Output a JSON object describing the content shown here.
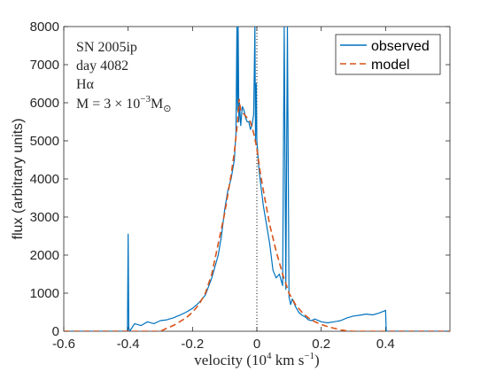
{
  "colors": {
    "observed": "#0072bd",
    "model": "#d95319",
    "axis": "#262626",
    "zero_line": "#000000"
  },
  "chart_data": {
    "type": "line",
    "xlabel_prefix": "velocity (10",
    "xlabel_exp": "4",
    "xlabel_mid": " km s",
    "xlabel_exp2": "−1",
    "xlabel_suffix": ")",
    "ylabel": "flux (arbitrary units)",
    "xlim": [
      -0.6,
      0.6
    ],
    "ylim": [
      0,
      8000
    ],
    "xticks": [
      -0.6,
      -0.4,
      -0.2,
      0,
      0.2,
      0.4
    ],
    "xtick_labels": [
      "-0.6",
      "-0.4",
      "-0.2",
      "0",
      "0.2",
      "0.4"
    ],
    "yticks": [
      0,
      1000,
      2000,
      3000,
      4000,
      5000,
      6000,
      7000,
      8000
    ],
    "ytick_labels": [
      "0",
      "1000",
      "2000",
      "3000",
      "4000",
      "5000",
      "6000",
      "7000",
      "8000"
    ],
    "legend_position": "top-right",
    "annotations": {
      "line1": "SN 2005ip",
      "line2": "day 4082",
      "line3": "Hα",
      "line4_prefix": "M = 3 × 10",
      "line4_exp": "−3",
      "line4_suffix": "M",
      "line4_sub": "⊙"
    },
    "zero_velocity_line": 0,
    "series": [
      {
        "name": "observed",
        "style": "solid",
        "x": [
          -0.6,
          -0.41,
          -0.402,
          -0.4,
          -0.398,
          -0.395,
          -0.38,
          -0.36,
          -0.34,
          -0.32,
          -0.3,
          -0.28,
          -0.26,
          -0.24,
          -0.22,
          -0.2,
          -0.18,
          -0.16,
          -0.14,
          -0.12,
          -0.11,
          -0.1,
          -0.09,
          -0.08,
          -0.07,
          -0.065,
          -0.062,
          -0.06,
          -0.058,
          -0.056,
          -0.054,
          -0.05,
          -0.045,
          -0.04,
          -0.035,
          -0.03,
          -0.025,
          -0.02,
          -0.015,
          -0.01,
          -0.006,
          -0.004,
          -0.002,
          0,
          0.002,
          0.005,
          0.01,
          0.02,
          0.03,
          0.04,
          0.05,
          0.06,
          0.07,
          0.08,
          0.085,
          0.09,
          0.095,
          0.1,
          0.105,
          0.11,
          0.12,
          0.13,
          0.14,
          0.15,
          0.16,
          0.17,
          0.18,
          0.2,
          0.22,
          0.24,
          0.26,
          0.28,
          0.3,
          0.32,
          0.34,
          0.36,
          0.38,
          0.4,
          0.402,
          0.41,
          0.6
        ],
        "y": [
          0,
          0,
          0,
          2550,
          100,
          0,
          200,
          150,
          250,
          200,
          280,
          300,
          350,
          420,
          500,
          600,
          750,
          950,
          1400,
          2000,
          2500,
          3200,
          3700,
          4000,
          4500,
          5200,
          8000,
          5800,
          8000,
          5500,
          6000,
          5400,
          5900,
          5800,
          5600,
          5500,
          5500,
          5300,
          5400,
          5700,
          8000,
          5000,
          6500,
          5000,
          4800,
          4400,
          4000,
          3300,
          2800,
          2300,
          1600,
          1400,
          1500,
          1200,
          8000,
          1100,
          8000,
          900,
          700,
          850,
          650,
          500,
          420,
          380,
          300,
          280,
          320,
          250,
          220,
          250,
          280,
          350,
          400,
          420,
          450,
          430,
          480,
          550,
          0,
          0,
          0
        ]
      },
      {
        "name": "model",
        "style": "dashed",
        "x": [
          -0.6,
          -0.3,
          -0.28,
          -0.26,
          -0.24,
          -0.22,
          -0.2,
          -0.18,
          -0.16,
          -0.14,
          -0.12,
          -0.1,
          -0.08,
          -0.07,
          -0.06,
          -0.055,
          -0.05,
          -0.04,
          -0.03,
          -0.02,
          -0.01,
          0,
          0.01,
          0.02,
          0.04,
          0.06,
          0.08,
          0.1,
          0.12,
          0.14,
          0.16,
          0.18,
          0.2,
          0.22,
          0.24,
          0.26,
          0.28,
          0.3,
          0.6
        ],
        "y": [
          0,
          0,
          80,
          150,
          250,
          350,
          500,
          700,
          1000,
          1500,
          2300,
          3100,
          4100,
          4700,
          5500,
          6100,
          5800,
          5700,
          5600,
          5500,
          5200,
          4800,
          4200,
          3700,
          2800,
          2100,
          1500,
          1000,
          700,
          500,
          350,
          250,
          180,
          120,
          80,
          40,
          10,
          0,
          0
        ]
      }
    ]
  }
}
